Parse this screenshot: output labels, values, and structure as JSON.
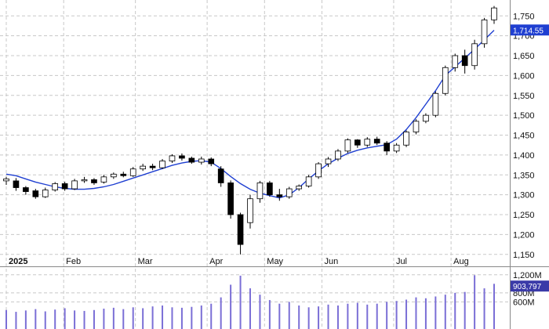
{
  "chart_data": {
    "type": "candlestick",
    "main": {
      "y_axis_side": "right",
      "ylim": [
        1120,
        1790
      ],
      "y_ticks": [
        "1,150",
        "1,200",
        "1,250",
        "1,300",
        "1,350",
        "1,400",
        "1,450",
        "1,500",
        "1,550",
        "1,600",
        "1,650",
        "1,700",
        "1,750"
      ],
      "y_tick_values": [
        1150,
        1200,
        1250,
        1300,
        1350,
        1400,
        1450,
        1500,
        1550,
        1600,
        1650,
        1700,
        1750
      ],
      "last_price_label": "1,714.55",
      "last_price_value": 1714.55,
      "moving_average": [
        1352,
        1348,
        1340,
        1332,
        1326,
        1320,
        1316,
        1314,
        1314,
        1316,
        1320,
        1326,
        1334,
        1342,
        1350,
        1358,
        1366,
        1374,
        1380,
        1384,
        1386,
        1382,
        1366,
        1346,
        1328,
        1314,
        1304,
        1298,
        1292,
        1300,
        1318,
        1340,
        1360,
        1378,
        1392,
        1404,
        1412,
        1418,
        1422,
        1426,
        1440,
        1464,
        1494,
        1528,
        1562,
        1600,
        1622,
        1644,
        1666,
        1690,
        1714
      ],
      "bars": [
        [
          1335,
          1340,
          1325,
          1345
        ],
        [
          1335,
          1318,
          1310,
          1342
        ],
        [
          1318,
          1308,
          1300,
          1322
        ],
        [
          1310,
          1295,
          1290,
          1315
        ],
        [
          1295,
          1312,
          1292,
          1318
        ],
        [
          1312,
          1328,
          1308,
          1332
        ],
        [
          1328,
          1315,
          1310,
          1333
        ],
        [
          1315,
          1335,
          1312,
          1340
        ],
        [
          1335,
          1338,
          1330,
          1345
        ],
        [
          1338,
          1330,
          1325,
          1342
        ],
        [
          1332,
          1345,
          1328,
          1350
        ],
        [
          1345,
          1352,
          1340,
          1356
        ],
        [
          1352,
          1348,
          1344,
          1358
        ],
        [
          1348,
          1365,
          1345,
          1370
        ],
        [
          1365,
          1372,
          1360,
          1378
        ],
        [
          1372,
          1368,
          1362,
          1378
        ],
        [
          1368,
          1385,
          1365,
          1390
        ],
        [
          1385,
          1398,
          1380,
          1402
        ],
        [
          1398,
          1392,
          1386,
          1404
        ],
        [
          1392,
          1382,
          1378,
          1396
        ],
        [
          1382,
          1390,
          1376,
          1396
        ],
        [
          1390,
          1378,
          1372,
          1394
        ],
        [
          1365,
          1330,
          1320,
          1372
        ],
        [
          1330,
          1250,
          1240,
          1336
        ],
        [
          1250,
          1175,
          1150,
          1255
        ],
        [
          1230,
          1290,
          1215,
          1300
        ],
        [
          1290,
          1330,
          1280,
          1335
        ],
        [
          1330,
          1300,
          1295,
          1335
        ],
        [
          1300,
          1295,
          1285,
          1315
        ],
        [
          1295,
          1315,
          1290,
          1320
        ],
        [
          1315,
          1322,
          1310,
          1326
        ],
        [
          1322,
          1345,
          1318,
          1350
        ],
        [
          1345,
          1378,
          1340,
          1382
        ],
        [
          1378,
          1390,
          1370,
          1395
        ],
        [
          1390,
          1410,
          1385,
          1415
        ],
        [
          1410,
          1438,
          1405,
          1442
        ],
        [
          1438,
          1425,
          1418,
          1440
        ],
        [
          1425,
          1440,
          1420,
          1445
        ],
        [
          1440,
          1430,
          1425,
          1446
        ],
        [
          1430,
          1410,
          1400,
          1435
        ],
        [
          1410,
          1425,
          1405,
          1430
        ],
        [
          1425,
          1458,
          1420,
          1462
        ],
        [
          1458,
          1485,
          1452,
          1490
        ],
        [
          1485,
          1500,
          1480,
          1505
        ],
        [
          1500,
          1555,
          1495,
          1560
        ],
        [
          1555,
          1620,
          1550,
          1625
        ],
        [
          1620,
          1650,
          1610,
          1655
        ],
        [
          1650,
          1625,
          1605,
          1665
        ],
        [
          1625,
          1680,
          1615,
          1690
        ],
        [
          1680,
          1740,
          1670,
          1745
        ],
        [
          1740,
          1770,
          1730,
          1775
        ]
      ]
    },
    "x_axis": {
      "labels": [
        "2025",
        "Feb",
        "Mar",
        "Apr",
        "May",
        "Jun",
        "Jul",
        "Aug"
      ],
      "label_bar_index": [
        0,
        4,
        9,
        14,
        18,
        22,
        27,
        31
      ]
    },
    "volume": {
      "y_ticks": [
        "1,200M",
        "800M",
        "600M"
      ],
      "y_tick_values": [
        1200,
        800,
        600
      ],
      "ylim": [
        0,
        1300
      ],
      "last_volume_label": "903,797",
      "bars": [
        420,
        380,
        410,
        440,
        390,
        430,
        460,
        410,
        400,
        420,
        450,
        470,
        440,
        480,
        460,
        500,
        520,
        480,
        470,
        490,
        520,
        560,
        700,
        980,
        1180,
        900,
        760,
        640,
        560,
        600,
        520,
        480,
        500,
        540,
        520,
        560,
        580,
        540,
        560,
        600,
        620,
        650,
        700,
        680,
        720,
        760,
        800,
        820,
        1190,
        900,
        1000
      ]
    }
  },
  "colors": {
    "background": "#ffffff",
    "grid": "#c8c8c8",
    "axis_text": "#111111",
    "ma_line": "#1f3fd1",
    "candle_up_fill": "#ffffff",
    "candle_down_fill": "#000000",
    "candle_outline": "#000000",
    "volume_bar": "#7b6fd6",
    "price_tag_bg": "#1f3fd1",
    "volume_tag_bg": "#3a3aa8"
  }
}
